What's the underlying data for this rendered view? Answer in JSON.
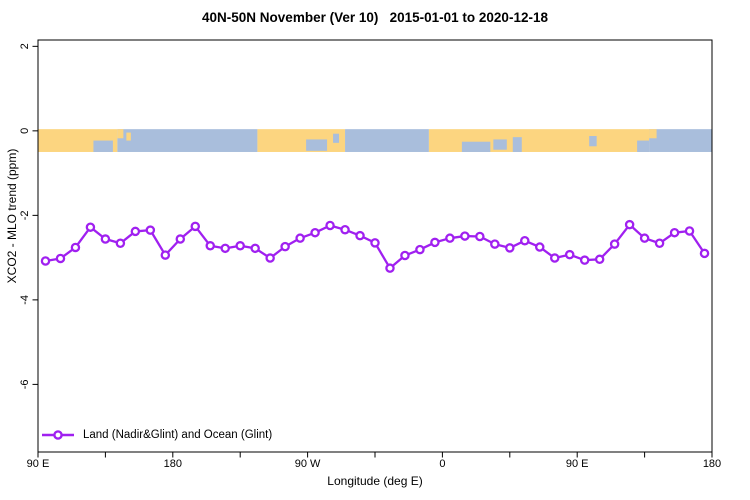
{
  "chart_data": {
    "type": "line",
    "title": "40N-50N November (Ver 10)   2015-01-01 to 2020-12-18",
    "xlabel": "Longitude (deg E)",
    "ylabel": "XCO2 - MLO trend (ppm)",
    "xlim": [
      90,
      540
    ],
    "ylim": [
      -7.6,
      2.15
    ],
    "grid": "off",
    "legend_position": "bottom-left",
    "x_major_ticks": [
      {
        "value": 90,
        "label": "90 E"
      },
      {
        "value": 180,
        "label": "180"
      },
      {
        "value": 270,
        "label": "90 W"
      },
      {
        "value": 360,
        "label": "0"
      },
      {
        "value": 450,
        "label": "90 E"
      },
      {
        "value": 540,
        "label": "180"
      }
    ],
    "x_minor_step": 45,
    "y_ticks": [
      {
        "value": 2,
        "label": "2"
      },
      {
        "value": 0,
        "label": "0"
      },
      {
        "value": -2,
        "label": "-2"
      },
      {
        "value": -4,
        "label": "-4"
      },
      {
        "value": -6,
        "label": "-6"
      }
    ],
    "series": [
      {
        "name": "Land (Nadir&Glint) and Ocean (Glint)",
        "color": "#A020F0",
        "marker": "open-circle",
        "x": [
          95,
          105,
          115,
          125,
          135,
          145,
          155,
          165,
          175,
          185,
          195,
          205,
          215,
          225,
          235,
          245,
          255,
          265,
          275,
          285,
          295,
          305,
          315,
          325,
          335,
          345,
          355,
          365,
          375,
          385,
          395,
          405,
          415,
          425,
          435,
          445,
          455,
          465,
          475,
          485,
          495,
          505,
          515,
          525,
          535
        ],
        "y": [
          -3.08,
          -3.02,
          -2.76,
          -2.28,
          -2.56,
          -2.66,
          -2.38,
          -2.35,
          -2.94,
          -2.56,
          -2.26,
          -2.72,
          -2.78,
          -2.72,
          -2.78,
          -3.01,
          -2.74,
          -2.54,
          -2.41,
          -2.24,
          -2.34,
          -2.48,
          -2.65,
          -3.25,
          -2.95,
          -2.81,
          -2.64,
          -2.54,
          -2.49,
          -2.5,
          -2.68,
          -2.77,
          -2.6,
          -2.75,
          -3.01,
          -2.93,
          -3.06,
          -3.04,
          -2.68,
          -2.22,
          -2.54,
          -2.66,
          -2.41,
          -2.37,
          -2.9
        ]
      }
    ],
    "map_band": {
      "value_top": 0.04,
      "value_bottom": -0.5,
      "land_color": "#FCD580",
      "ocean_color": "#A9BEDC",
      "segments": [
        {
          "from": 90,
          "to": 143,
          "type": "land"
        },
        {
          "from": 143,
          "to": 236.5,
          "type": "ocean"
        },
        {
          "from": 236.5,
          "to": 295,
          "type": "land"
        },
        {
          "from": 295,
          "to": 351,
          "type": "ocean"
        },
        {
          "from": 351,
          "to": 498,
          "type": "land"
        },
        {
          "from": 498,
          "to": 540,
          "type": "ocean"
        }
      ],
      "patches": [
        {
          "from": 127,
          "to": 140,
          "type": "ocean",
          "top": 0.5,
          "bottom": 1
        },
        {
          "from": 143,
          "to": 147,
          "type": "land",
          "top": 0,
          "bottom": 0.4
        },
        {
          "from": 149,
          "to": 152,
          "type": "land",
          "top": 0.15,
          "bottom": 0.5
        },
        {
          "from": 269,
          "to": 283,
          "type": "ocean",
          "top": 0.45,
          "bottom": 0.95
        },
        {
          "from": 287,
          "to": 291,
          "type": "ocean",
          "top": 0.2,
          "bottom": 0.6
        },
        {
          "from": 373,
          "to": 392,
          "type": "ocean",
          "top": 0.55,
          "bottom": 1
        },
        {
          "from": 394,
          "to": 403,
          "type": "ocean",
          "top": 0.45,
          "bottom": 0.9
        },
        {
          "from": 407,
          "to": 413,
          "type": "ocean",
          "top": 0.35,
          "bottom": 1
        },
        {
          "from": 458,
          "to": 463,
          "type": "ocean",
          "top": 0.3,
          "bottom": 0.75
        },
        {
          "from": 490,
          "to": 498,
          "type": "ocean",
          "top": 0.5,
          "bottom": 1
        },
        {
          "from": 498,
          "to": 503,
          "type": "land",
          "top": 0,
          "bottom": 0.4
        }
      ]
    }
  },
  "legend": {
    "label": "Land (Nadir&Glint) and Ocean (Glint)"
  },
  "colors": {
    "series": "#A020F0",
    "land": "#FCD580",
    "ocean": "#A9BEDC",
    "axis": "#000000",
    "background": "#FFFFFF"
  }
}
